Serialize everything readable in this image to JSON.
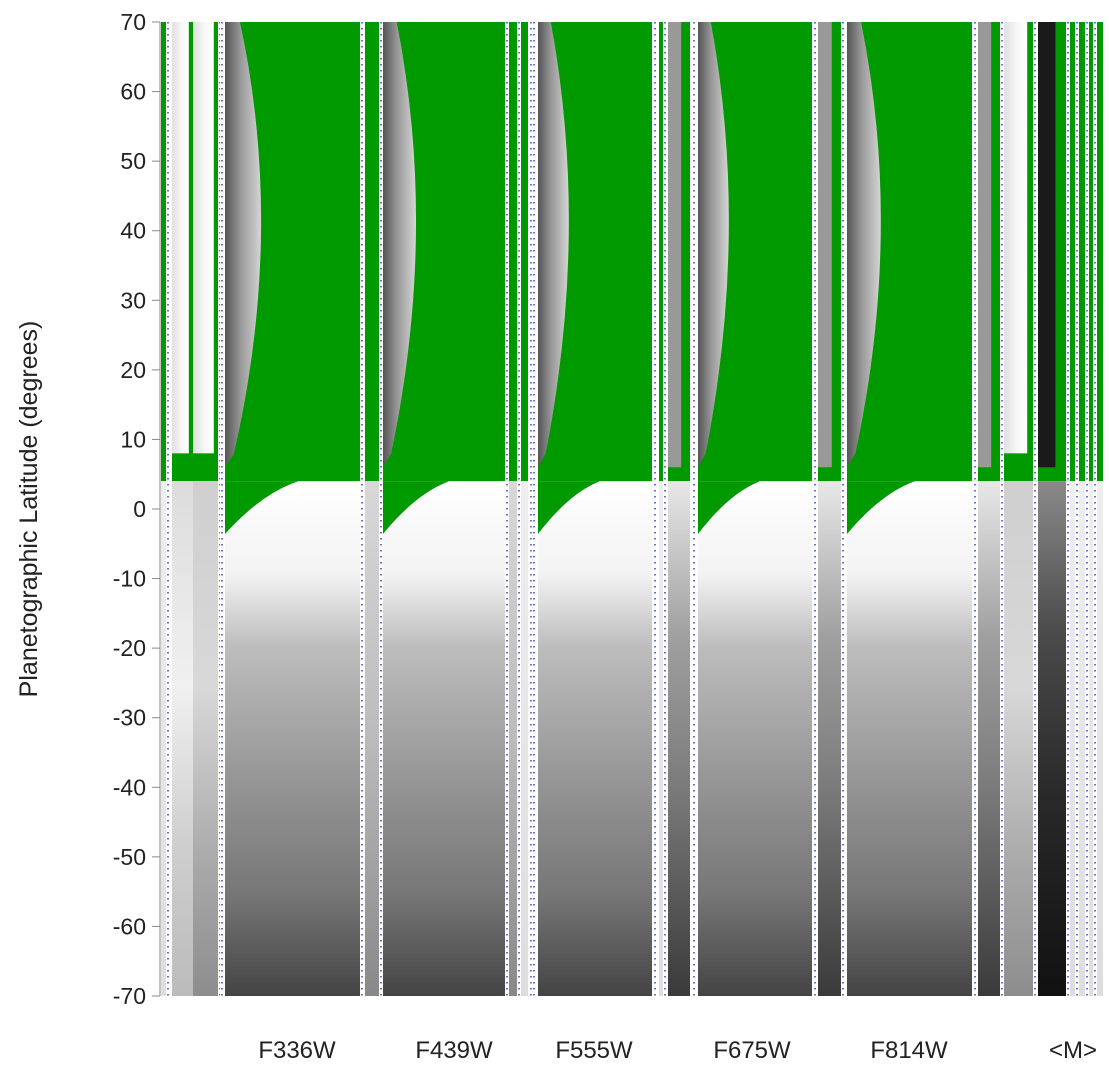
{
  "chart_data": {
    "type": "heatmap",
    "ylabel": "Planetographic Latitude (degrees)",
    "ylim": [
      -70,
      70
    ],
    "yticks": [
      70,
      60,
      50,
      40,
      30,
      20,
      10,
      0,
      -10,
      -20,
      -30,
      -40,
      -50,
      -60,
      -70
    ],
    "ytick_labels": [
      "70",
      "60",
      "50",
      "40",
      "30",
      "20",
      "10",
      "0",
      "-10",
      "-20",
      "-30",
      "-40",
      "-50",
      "-60",
      "-70"
    ],
    "band_labels": [
      "F336W",
      "F439W",
      "F555W",
      "F675W",
      "F814W",
      "<M>"
    ],
    "colors": {
      "no_data": "#009900",
      "separator_dots": "#2233cc",
      "grayscale_low": "#111111",
      "grayscale_high": "#ffffff"
    }
  }
}
